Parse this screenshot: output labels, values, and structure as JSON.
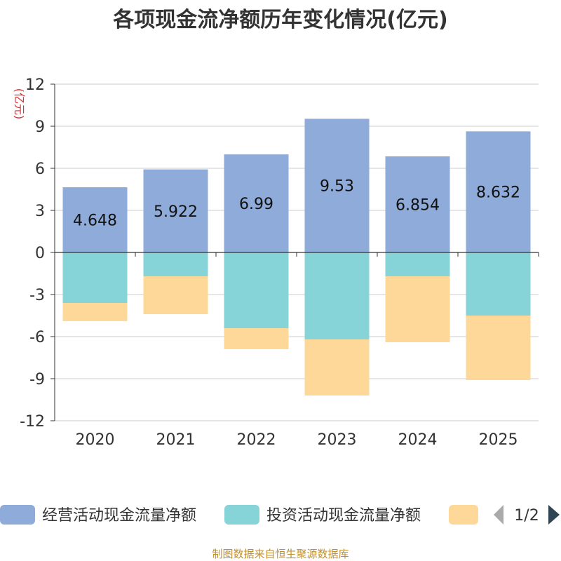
{
  "chart_data": {
    "type": "bar",
    "stacked": true,
    "title": "各项现金流净额历年变化情况(亿元)",
    "y_unit": "(亿元)",
    "categories": [
      "2020",
      "2021",
      "2022",
      "2023",
      "2024",
      "2025"
    ],
    "ylim": [
      -12,
      12
    ],
    "yticks": [
      12,
      9,
      6,
      3,
      0,
      -3,
      -6,
      -9,
      -12
    ],
    "ytick_labels": [
      "12",
      "9",
      "6",
      "3",
      "0",
      "-3",
      "-6",
      "-9",
      "-12"
    ],
    "grid": true,
    "series": [
      {
        "name": "经营活动现金流量净额",
        "color": "#8fabd9",
        "values": [
          4.648,
          5.922,
          6.99,
          9.53,
          6.854,
          8.632
        ],
        "labels": [
          "4.648",
          "5.922",
          "6.99",
          "9.53",
          "6.854",
          "8.632"
        ]
      },
      {
        "name": "投资活动现金流量净额",
        "color": "#86d4d8",
        "values": [
          -3.6,
          -1.7,
          -5.4,
          -6.2,
          -1.7,
          -4.5
        ]
      },
      {
        "name": "",
        "color": "#fdd899",
        "values": [
          -1.3,
          -2.7,
          -1.5,
          -4.0,
          -4.7,
          -4.6
        ]
      }
    ]
  },
  "legend": {
    "placement": "bottom",
    "page": "1/2"
  },
  "footer": {
    "source": "制图数据来自恒生聚源数据库"
  }
}
